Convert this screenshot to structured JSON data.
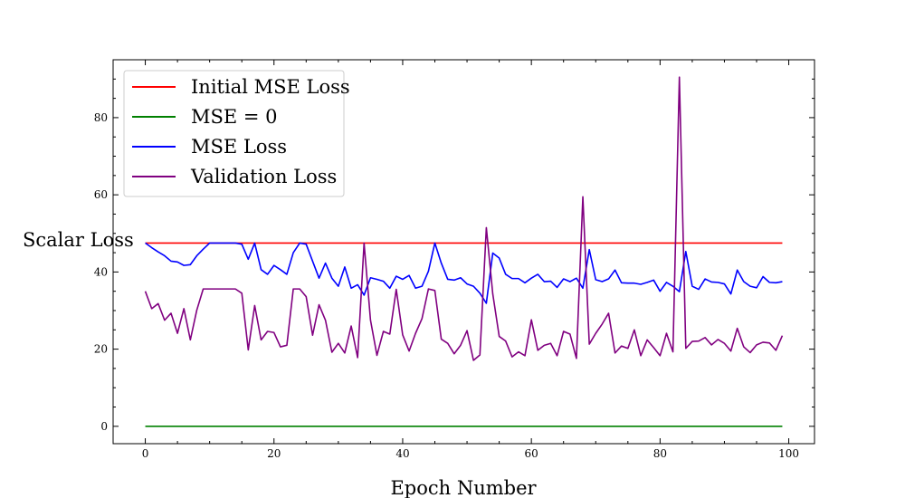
{
  "chart_data": {
    "type": "line",
    "title": "",
    "xlabel": "Epoch Number",
    "ylabel": "Scalar Loss",
    "xlim": [
      -5,
      104
    ],
    "ylim": [
      -4.5,
      95
    ],
    "xticks": [
      0,
      20,
      40,
      60,
      80,
      100
    ],
    "yticks": [
      0,
      20,
      40,
      60,
      80
    ],
    "grid": false,
    "legend": "upper-left",
    "series": [
      {
        "name": "Initial MSE Loss",
        "color": "#ff0000",
        "x": [
          0,
          99
        ],
        "y": [
          47.5,
          47.5
        ]
      },
      {
        "name": "MSE = 0",
        "color": "#008000",
        "x": [
          0,
          99
        ],
        "y": [
          0,
          0
        ]
      },
      {
        "name": "MSE Loss",
        "color": "#0000ff",
        "x": [
          0,
          1,
          2,
          3,
          4,
          5,
          6,
          7,
          8,
          9,
          10,
          11,
          12,
          13,
          14,
          15,
          16,
          17,
          18,
          19,
          20,
          21,
          22,
          23,
          24,
          25,
          26,
          27,
          28,
          29,
          30,
          31,
          32,
          33,
          34,
          35,
          36,
          37,
          38,
          39,
          40,
          41,
          42,
          43,
          44,
          45,
          46,
          47,
          48,
          49,
          50,
          51,
          52,
          53,
          54,
          55,
          56,
          57,
          58,
          59,
          60,
          61,
          62,
          63,
          64,
          65,
          66,
          67,
          68,
          69,
          70,
          71,
          72,
          73,
          74,
          75,
          76,
          77,
          78,
          79,
          80,
          81,
          82,
          83,
          84,
          85,
          86,
          87,
          88,
          89,
          90,
          91,
          92,
          93,
          94,
          95,
          96,
          97,
          98,
          99
        ],
        "y": [
          47.5,
          46.3,
          45.2,
          44.2,
          42.8,
          42.6,
          41.7,
          41.9,
          44.2,
          45.9,
          47.5,
          47.5,
          47.5,
          47.5,
          47.5,
          47.2,
          43.3,
          47.5,
          40.6,
          39.4,
          41.7,
          40.6,
          39.4,
          45.0,
          47.5,
          47.2,
          42.8,
          38.4,
          42.3,
          38.4,
          36.3,
          41.3,
          35.8,
          36.7,
          34.0,
          38.5,
          38.1,
          37.6,
          35.8,
          38.9,
          38.1,
          39.1,
          35.8,
          36.3,
          40.2,
          47.5,
          42.3,
          38.1,
          37.9,
          38.5,
          36.9,
          36.3,
          34.5,
          31.9,
          44.9,
          43.6,
          39.4,
          38.3,
          38.3,
          37.2,
          38.4,
          39.4,
          37.5,
          37.6,
          36.0,
          38.2,
          37.5,
          38.4,
          35.8,
          45.8,
          38.0,
          37.5,
          38.2,
          40.5,
          37.2,
          37.1,
          37.1,
          36.8,
          37.3,
          37.9,
          35.0,
          37.3,
          36.3,
          34.9,
          45.3,
          36.3,
          35.5,
          38.2,
          37.4,
          37.3,
          36.9,
          34.3,
          40.5,
          37.5,
          36.3,
          35.9,
          38.8,
          37.3,
          37.2,
          37.5
        ]
      },
      {
        "name": "Validation Loss",
        "color": "#800080",
        "x": [
          0,
          1,
          2,
          3,
          4,
          5,
          6,
          7,
          8,
          9,
          10,
          11,
          12,
          13,
          14,
          15,
          16,
          17,
          18,
          19,
          20,
          21,
          22,
          23,
          24,
          25,
          26,
          27,
          28,
          29,
          30,
          31,
          32,
          33,
          34,
          35,
          36,
          37,
          38,
          39,
          40,
          41,
          42,
          43,
          44,
          45,
          46,
          47,
          48,
          49,
          50,
          51,
          52,
          53,
          54,
          55,
          56,
          57,
          58,
          59,
          60,
          61,
          62,
          63,
          64,
          65,
          66,
          67,
          68,
          69,
          70,
          71,
          72,
          73,
          74,
          75,
          76,
          77,
          78,
          79,
          80,
          81,
          82,
          83,
          84,
          85,
          86,
          87,
          88,
          89,
          90,
          91,
          92,
          93,
          94,
          95,
          96,
          97,
          98,
          99
        ],
        "y": [
          35.0,
          30.5,
          31.8,
          27.5,
          29.3,
          24.1,
          30.5,
          22.4,
          30.1,
          35.6,
          35.6,
          35.6,
          35.6,
          35.6,
          35.6,
          34.5,
          19.8,
          31.3,
          22.4,
          24.6,
          24.3,
          20.6,
          21.0,
          35.6,
          35.6,
          33.6,
          23.6,
          31.5,
          27.5,
          19.2,
          21.5,
          19.0,
          26.0,
          17.8,
          47.5,
          27.5,
          18.4,
          24.6,
          23.9,
          35.5,
          23.7,
          19.5,
          24.1,
          27.9,
          35.6,
          35.2,
          22.6,
          21.5,
          18.8,
          21.0,
          24.8,
          17.1,
          18.5,
          51.5,
          34.3,
          23.3,
          22.1,
          18.0,
          19.3,
          18.3,
          27.6,
          19.7,
          21.0,
          21.5,
          18.3,
          24.6,
          23.9,
          17.6,
          59.5,
          21.3,
          24.1,
          26.5,
          29.3,
          19.0,
          20.8,
          20.2,
          25.0,
          18.3,
          22.4,
          20.4,
          18.3,
          24.1,
          19.3,
          90.5,
          20.2,
          22.0,
          22.1,
          23.0,
          21.1,
          22.5,
          21.5,
          19.5,
          25.4,
          20.6,
          19.1,
          21.1,
          21.8,
          21.6,
          19.7,
          23.5
        ]
      }
    ]
  }
}
